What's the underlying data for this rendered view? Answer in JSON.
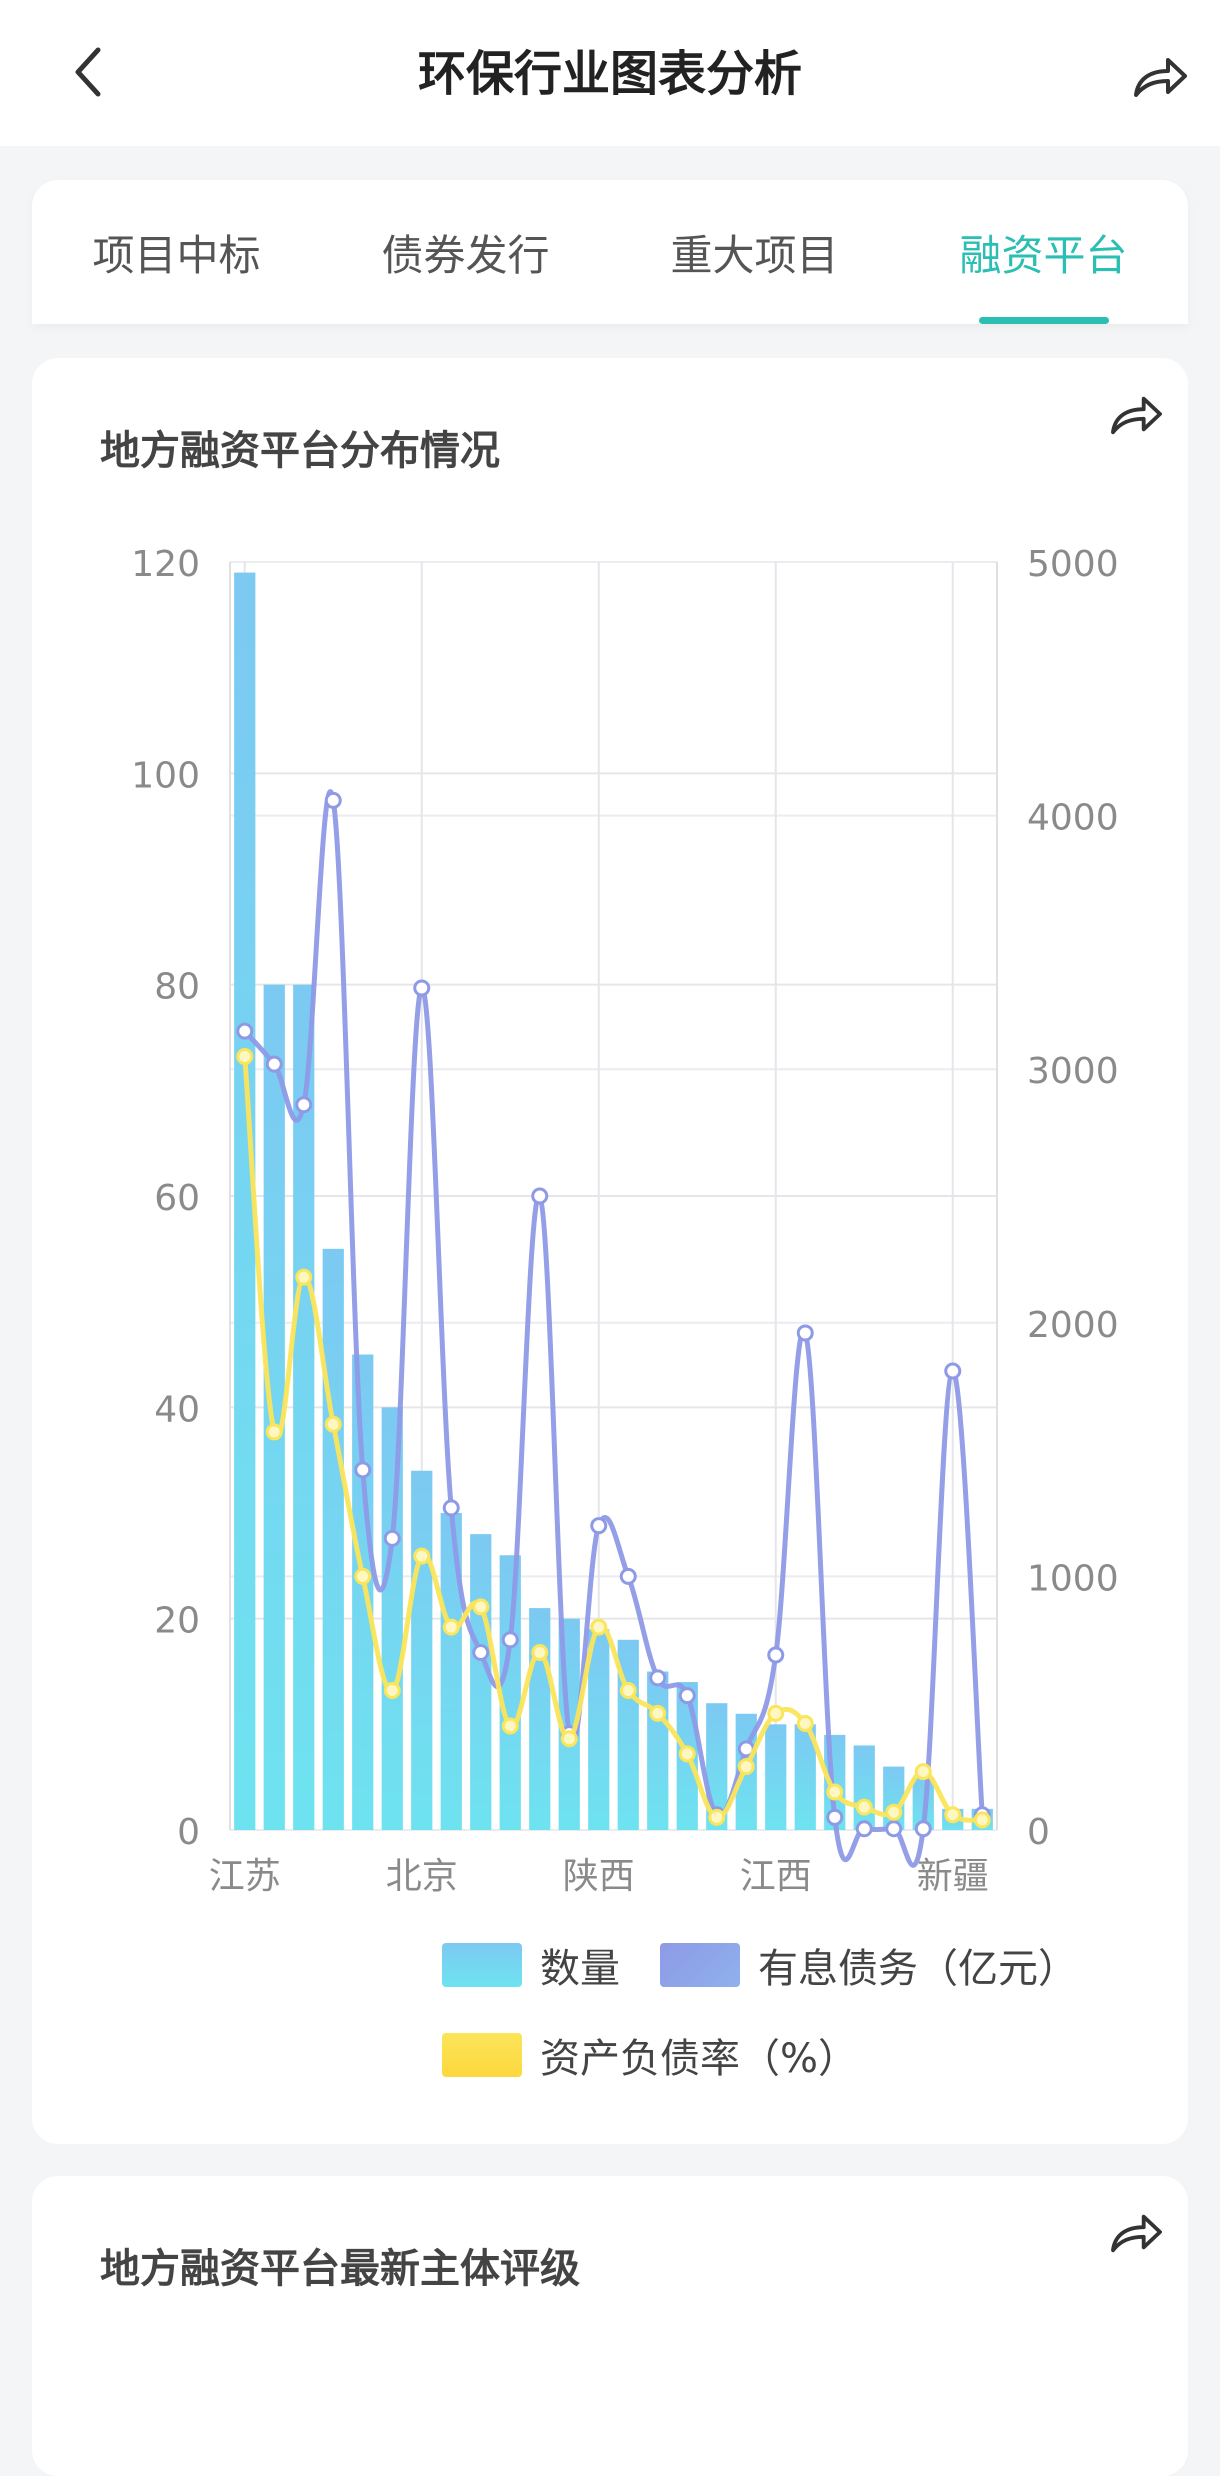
{
  "header": {
    "title": "环保行业图表分析",
    "back_icon": "chevron-left-icon",
    "share_icon": "share-arrow-icon"
  },
  "tabs": [
    {
      "label": "项目中标",
      "active": false
    },
    {
      "label": "债券发行",
      "active": false
    },
    {
      "label": "重大项目",
      "active": false
    },
    {
      "label": "融资平台",
      "active": true
    }
  ],
  "colors": {
    "accent": "#2bbfb3",
    "bar_top": "#7cc9f2",
    "bar_bottom": "#6ee3f0",
    "debt_line": "#8e9ae6",
    "ratio_line": "#fbe55a"
  },
  "chart_card": {
    "title": "地方融资平台分布情况",
    "legend": {
      "count": "数量",
      "debt": "有息债务（亿元）",
      "ratio": "资产负债率（%）"
    }
  },
  "rating_card": {
    "title": "地方融资平台最新主体评级"
  },
  "chart_data": {
    "type": "bar",
    "x_tick_labels": [
      "江苏",
      "北京",
      "陕西",
      "江西",
      "新疆"
    ],
    "y_left_ticks": [
      "0",
      "20",
      "40",
      "60",
      "80",
      "100",
      "120"
    ],
    "y_right_ticks": [
      "0",
      "1000",
      "2000",
      "3000",
      "4000",
      "5000"
    ],
    "ylim_left": [
      0,
      120
    ],
    "ylim_right": [
      0,
      5000
    ],
    "grid": true,
    "legend_position": "bottom",
    "series": [
      {
        "name": "数量",
        "type": "bar",
        "axis": "left",
        "values": [
          119,
          80,
          80,
          55,
          45,
          40,
          34,
          30,
          28,
          26,
          21,
          20,
          19,
          18,
          15,
          14,
          12,
          11,
          10,
          10,
          9,
          8,
          6,
          5,
          2,
          2
        ]
      },
      {
        "name": "有息债务（亿元）",
        "type": "line",
        "axis": "right",
        "values": [
          3150,
          3020,
          2860,
          4060,
          1420,
          1150,
          3320,
          1270,
          700,
          750,
          2500,
          380,
          1200,
          1000,
          600,
          530,
          60,
          320,
          690,
          1960,
          50,
          5,
          5,
          5,
          1810,
          60
        ]
      },
      {
        "name": "资产负债率（%）",
        "type": "line",
        "axis": "right",
        "values": [
          3050,
          1570,
          2180,
          1600,
          1000,
          550,
          1080,
          800,
          880,
          410,
          700,
          360,
          800,
          550,
          460,
          300,
          50,
          250,
          460,
          420,
          150,
          90,
          70,
          230,
          60,
          40
        ]
      }
    ]
  }
}
